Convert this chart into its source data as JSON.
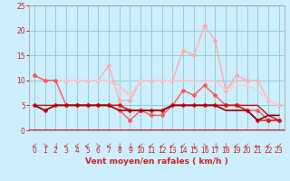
{
  "title": "",
  "xlabel": "Vent moyen/en rafales ( km/h )",
  "background_color": "#cceeff",
  "grid_color": "#99cccc",
  "xlim": [
    -0.5,
    23.5
  ],
  "ylim": [
    0,
    25
  ],
  "yticks": [
    0,
    5,
    10,
    15,
    20,
    25
  ],
  "xticks": [
    0,
    1,
    2,
    3,
    4,
    5,
    6,
    7,
    8,
    9,
    10,
    11,
    12,
    13,
    14,
    15,
    16,
    17,
    18,
    19,
    20,
    21,
    22,
    23
  ],
  "series": [
    {
      "y": [
        11,
        10,
        10,
        10,
        10,
        10,
        10,
        13,
        6,
        6,
        10,
        10,
        10,
        10,
        16,
        15,
        21,
        18,
        8,
        11,
        10,
        10,
        6,
        5
      ],
      "color": "#ffaaaa",
      "lw": 1.0,
      "marker": "D",
      "ms": 2.0,
      "zorder": 2
    },
    {
      "y": [
        11,
        10,
        10,
        10,
        10,
        10,
        10,
        10,
        9,
        7,
        10,
        10,
        10,
        10,
        10,
        10,
        10,
        10,
        8,
        10,
        10,
        10,
        6,
        5
      ],
      "color": "#ffbbbb",
      "lw": 1.0,
      "marker": null,
      "ms": 0,
      "zorder": 2
    },
    {
      "y": [
        11,
        10,
        10,
        10,
        10,
        10,
        10,
        10,
        8,
        7,
        10,
        10,
        10,
        10,
        10,
        10,
        10,
        10,
        8,
        9,
        9,
        8,
        6,
        5
      ],
      "color": "#ffcccc",
      "lw": 1.0,
      "marker": null,
      "ms": 0,
      "zorder": 2
    },
    {
      "y": [
        11,
        10,
        10,
        5,
        5,
        5,
        5,
        5,
        4,
        2,
        4,
        3,
        3,
        5,
        8,
        7,
        9,
        7,
        5,
        5,
        4,
        4,
        2,
        2
      ],
      "color": "#ff5555",
      "lw": 1.0,
      "marker": "D",
      "ms": 2.0,
      "zorder": 4
    },
    {
      "y": [
        5,
        4,
        5,
        5,
        5,
        5,
        5,
        5,
        5,
        4,
        4,
        4,
        4,
        5,
        5,
        5,
        5,
        5,
        5,
        5,
        4,
        2,
        2,
        2
      ],
      "color": "#dd1111",
      "lw": 1.0,
      "marker": "D",
      "ms": 2.0,
      "zorder": 5
    },
    {
      "y": [
        5,
        4,
        5,
        5,
        5,
        5,
        5,
        5,
        4,
        4,
        4,
        4,
        4,
        5,
        5,
        5,
        5,
        5,
        4,
        4,
        4,
        2,
        3,
        3
      ],
      "color": "#990000",
      "lw": 1.2,
      "marker": null,
      "ms": 0,
      "zorder": 5
    },
    {
      "y": [
        5,
        5,
        5,
        5,
        5,
        5,
        5,
        5,
        5,
        4,
        4,
        4,
        4,
        5,
        5,
        5,
        5,
        5,
        5,
        5,
        5,
        5,
        3,
        2
      ],
      "color": "#bb1111",
      "lw": 1.0,
      "marker": null,
      "ms": 0,
      "zorder": 4
    }
  ],
  "arrow_chars": [
    "↙",
    "↘",
    "↓",
    "↙",
    "↙",
    "↙",
    "↘",
    "↙",
    "↓",
    "↓",
    "↙",
    "↙",
    "↙",
    "↙",
    "↙",
    "↓",
    "↘",
    "↓",
    "↓",
    "↙",
    "↙",
    "←",
    "↙",
    "↙"
  ],
  "arrow_color": "#cc2222",
  "axis_color": "#cc2222",
  "tick_fontsize": 5.5,
  "xlabel_fontsize": 6.5
}
